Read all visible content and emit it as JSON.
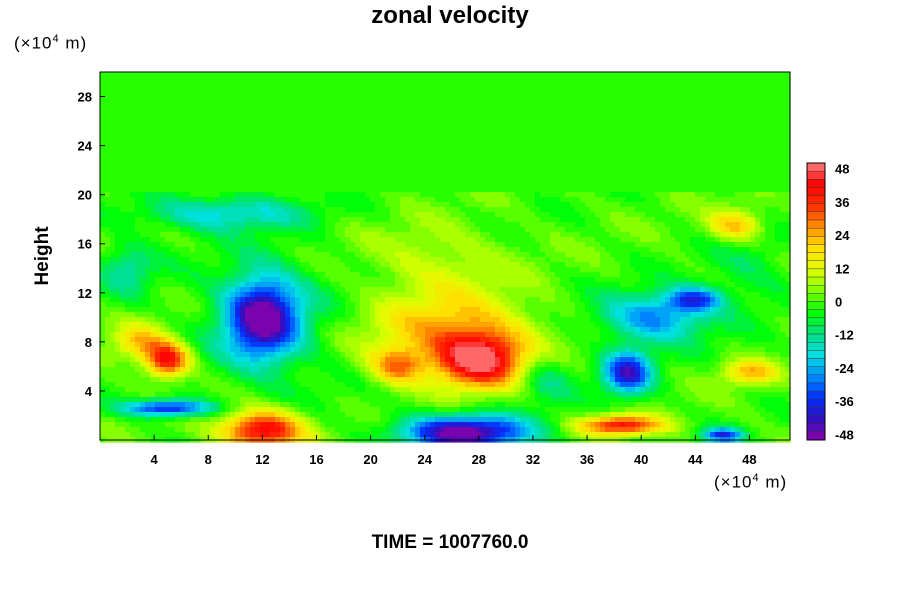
{
  "chart_data": {
    "type": "heatmap",
    "title": "zonal velocity",
    "ylabel": "Height",
    "x_unit_prefix": "(×10",
    "x_unit_exp": "4",
    "x_unit_suffix": "m)",
    "y_unit_prefix": "(×10",
    "y_unit_exp": "4",
    "y_unit_suffix": "m)",
    "x_ticks": [
      4,
      8,
      12,
      16,
      20,
      24,
      28,
      32,
      36,
      40,
      44,
      48
    ],
    "y_ticks": [
      4,
      8,
      12,
      16,
      20,
      24,
      28
    ],
    "xlim": [
      0,
      51
    ],
    "ylim": [
      0,
      30
    ],
    "colorbar": {
      "ticks": [
        48,
        36,
        24,
        12,
        0,
        -12,
        -24,
        -36,
        -48
      ],
      "range": [
        -50,
        50
      ],
      "levels": 34
    },
    "colorscale": [
      "#8a00a8",
      "#3010c0",
      "#0030ff",
      "#0090ff",
      "#00e0e0",
      "#00e080",
      "#00ff00",
      "#80ff00",
      "#e0ff00",
      "#ffe000",
      "#ff9000",
      "#ff3000",
      "#ff0000",
      "#ff8080"
    ],
    "features": [
      {
        "x": 12,
        "y": 10,
        "value": -44,
        "sx": 2.6,
        "sy": 3.3
      },
      {
        "x": 12.5,
        "y": 9.5,
        "value": -10,
        "sx": 5,
        "sy": 5.5
      },
      {
        "x": 28,
        "y": 6.5,
        "value": 46,
        "sx": 3.2,
        "sy": 2.2
      },
      {
        "x": 26,
        "y": 9,
        "value": 22,
        "sx": 6,
        "sy": 3
      },
      {
        "x": 22,
        "y": 6,
        "value": 26,
        "sx": 2,
        "sy": 1.5
      },
      {
        "x": 27,
        "y": 0.6,
        "value": -50,
        "sx": 4.8,
        "sy": 1.4
      },
      {
        "x": 12,
        "y": 0.8,
        "value": 46,
        "sx": 3,
        "sy": 1.6
      },
      {
        "x": 39,
        "y": 5.5,
        "value": -40,
        "sx": 1.8,
        "sy": 1.8
      },
      {
        "x": 41,
        "y": 10,
        "value": -28,
        "sx": 4,
        "sy": 2
      },
      {
        "x": 44,
        "y": 11.5,
        "value": -30,
        "sx": 2,
        "sy": 1
      },
      {
        "x": 5,
        "y": 6.5,
        "value": 42,
        "sx": 1.6,
        "sy": 1.4
      },
      {
        "x": 3,
        "y": 8,
        "value": 20,
        "sx": 2,
        "sy": 1.5
      },
      {
        "x": 5,
        "y": 2.6,
        "value": -40,
        "sx": 3.2,
        "sy": 0.7
      },
      {
        "x": 47,
        "y": 17.5,
        "value": 24,
        "sx": 2,
        "sy": 1.3
      },
      {
        "x": 48,
        "y": 5.5,
        "value": 22,
        "sx": 2,
        "sy": 1
      },
      {
        "x": 38.5,
        "y": 1.2,
        "value": 40,
        "sx": 3,
        "sy": 0.8
      },
      {
        "x": 46,
        "y": 0.4,
        "value": -35,
        "sx": 1.5,
        "sy": 0.6
      },
      {
        "x": 9,
        "y": 18.5,
        "value": -20,
        "sx": 6,
        "sy": 1.4
      },
      {
        "x": 2,
        "y": 14,
        "value": -15,
        "sx": 2,
        "sy": 2
      },
      {
        "x": 25,
        "y": 14.5,
        "value": 10,
        "sx": 5,
        "sy": 3
      },
      {
        "x": 33,
        "y": 5,
        "value": -12,
        "sx": 2,
        "sy": 2
      },
      {
        "x": 48,
        "y": 14,
        "value": -8,
        "sx": 3,
        "sy": 3
      }
    ],
    "top_layer": {
      "y_from": 20.2,
      "value": -2
    }
  },
  "footer": {
    "time_label": "TIME =",
    "time_value": "1007760.0"
  }
}
